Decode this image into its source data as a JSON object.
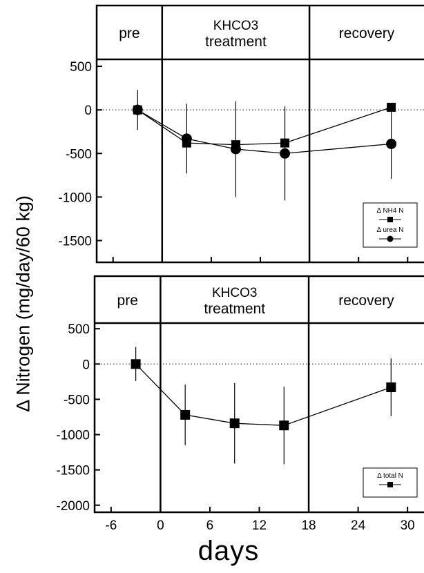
{
  "y_axis_label": "Δ Nitrogen (mg/day/60 kg)",
  "x_axis_label": "days",
  "colors": {
    "ink": "#000000",
    "background": "#ffffff"
  },
  "chart_data": [
    {
      "type": "line",
      "title": "",
      "phase_labels": {
        "pre": "pre",
        "treatment_line1": "KHCO3",
        "treatment_line2": "treatment",
        "recovery": "recovery"
      },
      "xlabel": "days",
      "ylabel": "Δ Nitrogen (mg/day/60 kg)",
      "xlim": [
        -8,
        32
      ],
      "ylim": [
        -1750,
        580
      ],
      "phase_boundaries": [
        0,
        18
      ],
      "x_ticks": [
        -6,
        0,
        6,
        12,
        18,
        24,
        30
      ],
      "y_ticks": [
        500,
        0,
        -500,
        -1000,
        -1500
      ],
      "y_tick_labels": [
        "500",
        "0",
        "-500",
        "-1000",
        "-1500"
      ],
      "legend_position": "bottom-right",
      "series": [
        {
          "name": "Δ NH4 N",
          "marker": "square",
          "x": [
            -3,
            3,
            9,
            15,
            28
          ],
          "y": [
            0,
            -380,
            -400,
            -380,
            30
          ],
          "err": [
            0,
            0,
            0,
            0,
            0
          ]
        },
        {
          "name": "Δ urea N",
          "marker": "circle",
          "x": [
            -3,
            3,
            9,
            15,
            28
          ],
          "y": [
            0,
            -330,
            -450,
            -500,
            -390
          ],
          "err": [
            230,
            400,
            550,
            540,
            400
          ]
        }
      ]
    },
    {
      "type": "line",
      "title": "",
      "phase_labels": {
        "pre": "pre",
        "treatment_line1": "KHCO3",
        "treatment_line2": "treatment",
        "recovery": "recovery"
      },
      "xlabel": "days",
      "ylabel": "Δ Nitrogen (mg/day/60 kg)",
      "xlim": [
        -8,
        32
      ],
      "ylim": [
        -2100,
        580
      ],
      "phase_boundaries": [
        0,
        18
      ],
      "x_ticks": [
        -6,
        0,
        6,
        12,
        18,
        24,
        30
      ],
      "x_tick_labels": [
        "-6",
        "0",
        "6",
        "12",
        "18",
        "24",
        "30"
      ],
      "y_ticks": [
        500,
        0,
        -500,
        -1000,
        -1500,
        -2000
      ],
      "y_tick_labels": [
        "500",
        "0",
        "-500",
        "-1000",
        "-1500",
        "-2000"
      ],
      "legend_position": "bottom-right",
      "series": [
        {
          "name": "Δ total N",
          "marker": "square",
          "x": [
            -3,
            3,
            9,
            15,
            28
          ],
          "y": [
            0,
            -720,
            -840,
            -870,
            -330
          ],
          "err": [
            240,
            430,
            570,
            550,
            410
          ]
        }
      ]
    }
  ]
}
